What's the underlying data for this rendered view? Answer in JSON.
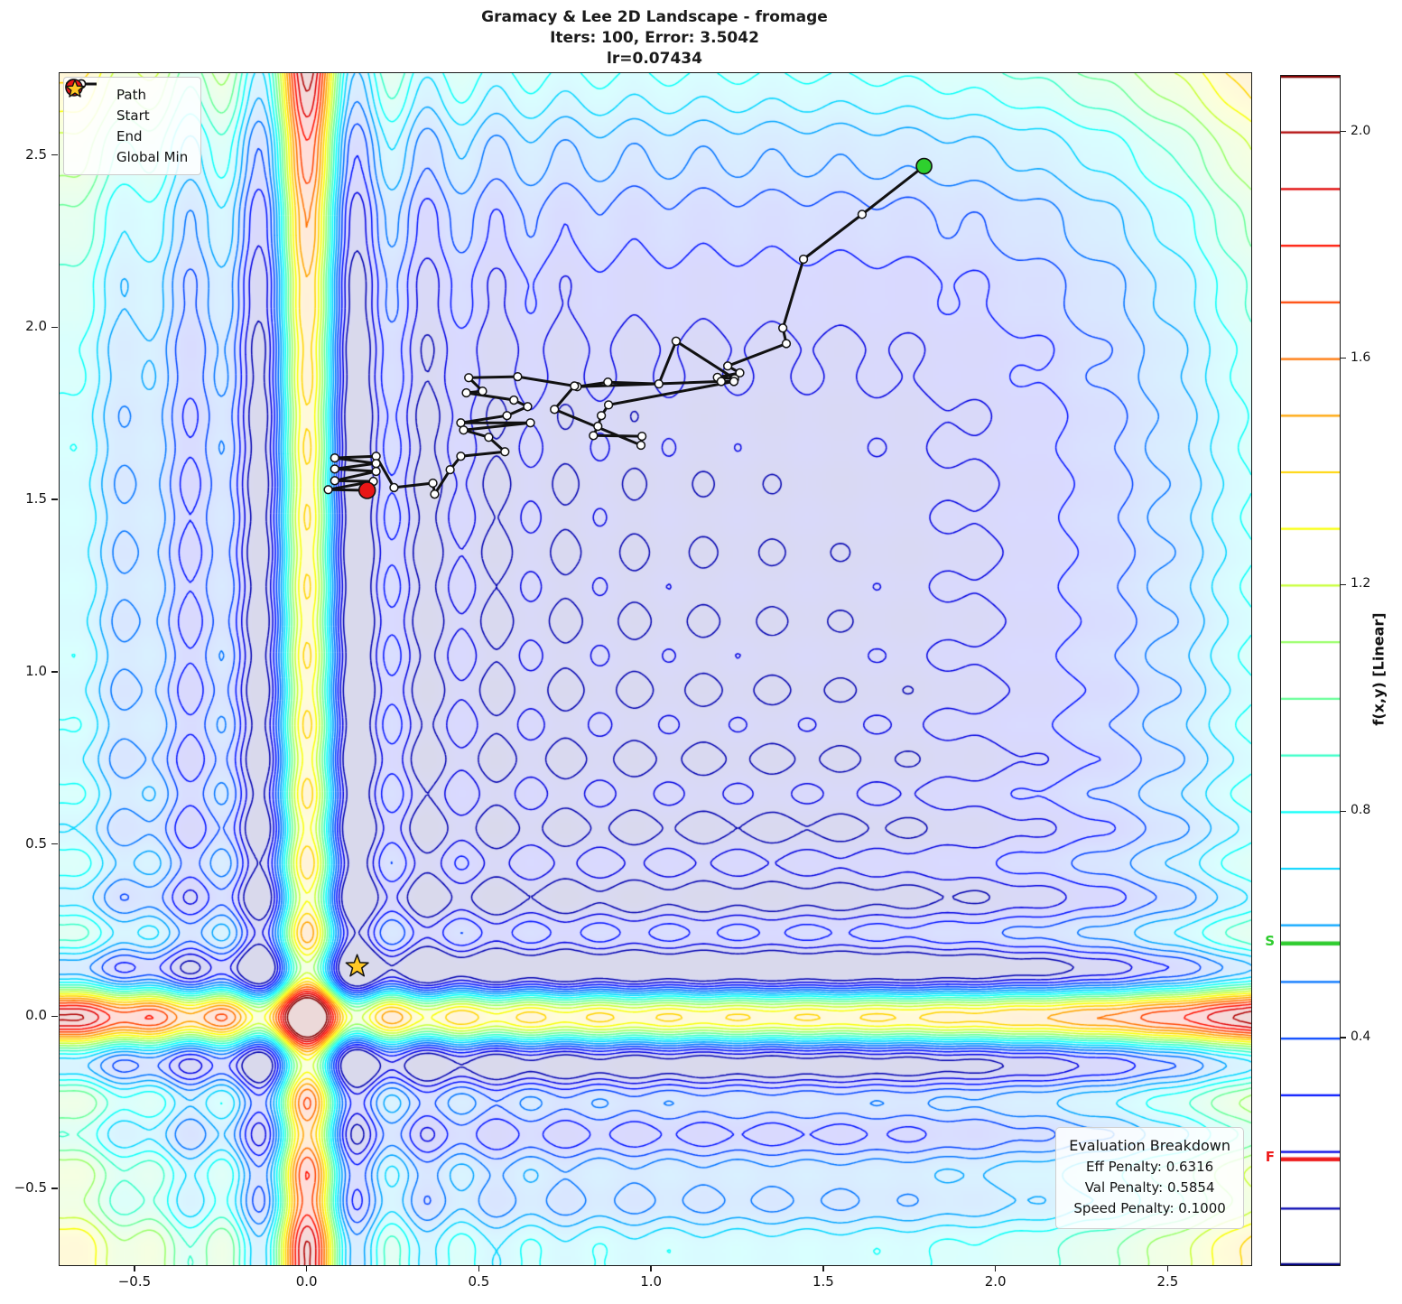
{
  "title": {
    "line1": "Gramacy & Lee 2D Landscape - fromage",
    "line2": "Iters: 100, Error: 3.5042",
    "line3": "lr=0.07434"
  },
  "legend": {
    "items": [
      {
        "label": "Path",
        "marker": "path-line",
        "color": "#111111"
      },
      {
        "label": "Start",
        "marker": "circle",
        "color": "#2ed02e"
      },
      {
        "label": "End",
        "marker": "circle",
        "color": "#e81616"
      },
      {
        "label": "Global Min",
        "marker": "star",
        "color": "#ffc926"
      }
    ]
  },
  "eval_box": {
    "title": "Evaluation Breakdown",
    "lines": [
      "Eff Penalty: 0.6316",
      "Val Penalty: 0.5854",
      "Speed Penalty: 0.1000"
    ]
  },
  "colorbar": {
    "label": "f(x,y) [Linear]",
    "range": [
      0.0,
      2.1
    ],
    "level_step": 0.1,
    "ticks": [
      0.4,
      0.8,
      1.2,
      1.6,
      2.0
    ],
    "markers": [
      {
        "label": "S",
        "value": 0.568,
        "color": "#2ecc2e"
      },
      {
        "label": "F",
        "value": 0.187,
        "color": "#ee1c1c"
      }
    ]
  },
  "chart_data": {
    "type": "contour-with-path",
    "title": "Gramacy & Lee 2D Landscape - fromage",
    "subtitle": "Iters: 100, Error: 3.5042, lr=0.07434",
    "function": "gramacy_lee_2d: f(x,y)=g(x)+g(y), g(t)=sin(10*pi*t)/(2t)+(t-1)^4",
    "display_transform": {
      "offset": 1.8,
      "scale": 0.075
    },
    "colormap": "jet",
    "grid": false,
    "xlim": [
      -0.72,
      2.74
    ],
    "ylim": [
      -0.72,
      2.74
    ],
    "xticks": [
      -0.5,
      0.0,
      0.5,
      1.0,
      1.5,
      2.0,
      2.5
    ],
    "yticks": [
      -0.5,
      0.0,
      0.5,
      1.0,
      1.5,
      2.0,
      2.5
    ],
    "contour_levels": {
      "min": 0.1,
      "max": 2.1,
      "step": 0.1
    },
    "fill_alpha": 0.15,
    "start": [
      1.79,
      2.47
    ],
    "end": [
      0.173,
      1.529
    ],
    "global_min": [
      0.144,
      0.147
    ],
    "path": [
      [
        1.79,
        2.47
      ],
      [
        1.61,
        2.33
      ],
      [
        1.44,
        2.2
      ],
      [
        1.38,
        2.0
      ],
      [
        1.39,
        1.955
      ],
      [
        1.22,
        1.89
      ],
      [
        1.255,
        1.87
      ],
      [
        1.19,
        1.857
      ],
      [
        1.24,
        1.853
      ],
      [
        1.07,
        1.962
      ],
      [
        1.02,
        1.838
      ],
      [
        0.872,
        1.843
      ],
      [
        0.783,
        1.83
      ],
      [
        1.201,
        1.845
      ],
      [
        1.238,
        1.845
      ],
      [
        0.874,
        1.777
      ],
      [
        0.853,
        1.746
      ],
      [
        0.843,
        1.715
      ],
      [
        0.83,
        1.688
      ],
      [
        0.971,
        1.686
      ],
      [
        0.968,
        1.66
      ],
      [
        0.717,
        1.764
      ],
      [
        0.775,
        1.832
      ],
      [
        0.61,
        1.859
      ],
      [
        0.468,
        1.856
      ],
      [
        0.508,
        1.817
      ],
      [
        0.461,
        1.812
      ],
      [
        0.599,
        1.791
      ],
      [
        0.639,
        1.772
      ],
      [
        0.579,
        1.746
      ],
      [
        0.445,
        1.725
      ],
      [
        0.647,
        1.725
      ],
      [
        0.453,
        1.704
      ],
      [
        0.526,
        1.683
      ],
      [
        0.573,
        1.641
      ],
      [
        0.445,
        1.628
      ],
      [
        0.414,
        1.589
      ],
      [
        0.369,
        1.518
      ],
      [
        0.364,
        1.55
      ],
      [
        0.251,
        1.537
      ],
      [
        0.199,
        1.628
      ],
      [
        0.079,
        1.623
      ],
      [
        0.199,
        1.607
      ],
      [
        0.079,
        1.591
      ],
      [
        0.199,
        1.584
      ],
      [
        0.079,
        1.557
      ],
      [
        0.191,
        1.555
      ],
      [
        0.06,
        1.531
      ],
      [
        0.173,
        1.529
      ]
    ],
    "path_style": {
      "line_color": "#111111",
      "node_fill": "#ffffff",
      "start_color": "#2ed02e",
      "end_color": "#e81616",
      "star_color": "#ffc926"
    }
  }
}
